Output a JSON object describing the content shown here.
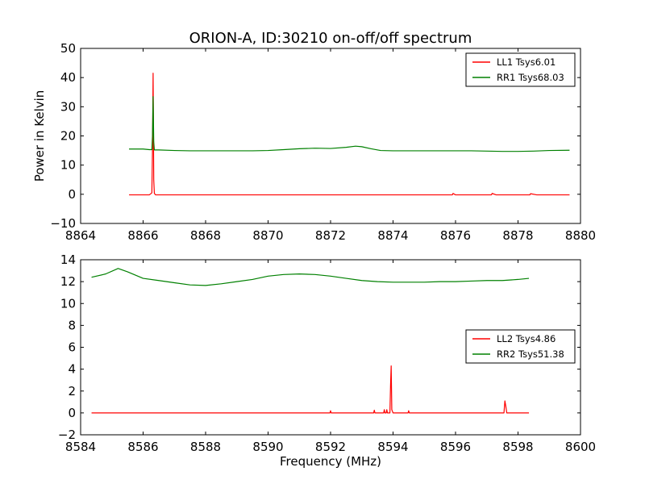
{
  "figure_title": "ORION-A, ID:30210 on-off/off spectrum",
  "colors": {
    "red": "#ff0000",
    "green": "#008000",
    "axes": "#000000"
  },
  "chart_data": [
    {
      "type": "line",
      "title": "ORION-A, ID:30210 on-off/off spectrum",
      "xlabel": "",
      "ylabel": "Power in Kelvin",
      "xlim": [
        8864,
        8880
      ],
      "ylim": [
        -10,
        50
      ],
      "xticks": [
        8864,
        8866,
        8868,
        8870,
        8872,
        8874,
        8876,
        8878,
        8880
      ],
      "yticks": [
        -10,
        0,
        10,
        20,
        30,
        40,
        50
      ],
      "grid": false,
      "legend_position": "top-right",
      "series": [
        {
          "name": "LL1 Tsys6.01",
          "color": "#ff0000",
          "x": [
            8865.55,
            8866.2,
            8866.28,
            8866.3,
            8866.32,
            8866.34,
            8866.36,
            8866.4,
            8866.6,
            8868.0,
            8870.0,
            8872.0,
            8874.0,
            8875.9,
            8875.92,
            8876.0,
            8877.15,
            8877.17,
            8877.3,
            8878.38,
            8878.4,
            8878.6,
            8879.65
          ],
          "y": [
            -0.2,
            -0.2,
            0.5,
            15.0,
            41.5,
            5.0,
            0.3,
            -0.2,
            -0.2,
            -0.2,
            -0.2,
            -0.2,
            -0.2,
            -0.2,
            0.3,
            -0.2,
            -0.2,
            0.3,
            -0.2,
            -0.2,
            0.2,
            -0.2,
            -0.2
          ]
        },
        {
          "name": "RR1 Tsys68.03",
          "color": "#008000",
          "x": [
            8865.55,
            8866.0,
            8866.2,
            8866.28,
            8866.3,
            8866.32,
            8866.34,
            8866.36,
            8866.5,
            8867.0,
            8867.5,
            8868.0,
            8868.5,
            8869.0,
            8869.5,
            8870.0,
            8870.5,
            8871.0,
            8871.5,
            8872.0,
            8872.5,
            8872.8,
            8873.0,
            8873.3,
            8873.6,
            8874.0,
            8874.5,
            8875.0,
            8875.5,
            8876.0,
            8876.5,
            8877.0,
            8877.5,
            8878.0,
            8878.5,
            8879.0,
            8879.65
          ],
          "y": [
            15.5,
            15.5,
            15.3,
            15.3,
            20.0,
            33.5,
            18.0,
            15.2,
            15.2,
            15.0,
            14.9,
            14.9,
            14.9,
            14.9,
            14.9,
            15.0,
            15.3,
            15.6,
            15.8,
            15.7,
            16.1,
            16.5,
            16.3,
            15.6,
            15.0,
            14.9,
            14.9,
            14.9,
            14.9,
            14.9,
            14.9,
            14.8,
            14.7,
            14.7,
            14.8,
            15.0,
            15.1
          ]
        }
      ]
    },
    {
      "type": "line",
      "title": "",
      "xlabel": "Frequency (MHz)",
      "ylabel": "",
      "xlim": [
        8584,
        8600
      ],
      "ylim": [
        -2,
        14
      ],
      "xticks": [
        8584,
        8586,
        8588,
        8590,
        8592,
        8594,
        8596,
        8598,
        8600
      ],
      "yticks": [
        -2,
        0,
        2,
        4,
        6,
        8,
        10,
        12,
        14
      ],
      "grid": false,
      "legend_position": "center-right",
      "series": [
        {
          "name": "LL2 Tsys4.86",
          "color": "#ff0000",
          "x": [
            8584.35,
            8586.0,
            8588.0,
            8590.0,
            8591.98,
            8592.0,
            8592.02,
            8593.0,
            8593.38,
            8593.4,
            8593.42,
            8593.7,
            8593.72,
            8593.74,
            8593.78,
            8593.8,
            8593.82,
            8593.9,
            8593.92,
            8593.94,
            8593.96,
            8594.0,
            8594.48,
            8594.5,
            8594.52,
            8595.5,
            8597.0,
            8597.55,
            8597.58,
            8597.61,
            8597.64,
            8597.7,
            8598.35
          ],
          "y": [
            0.0,
            0.0,
            0.0,
            0.0,
            0.0,
            0.2,
            0.0,
            0.0,
            0.0,
            0.25,
            0.0,
            0.0,
            0.3,
            0.0,
            0.0,
            0.3,
            0.0,
            0.0,
            2.5,
            4.3,
            0.3,
            0.0,
            0.0,
            0.2,
            0.0,
            0.0,
            0.0,
            0.0,
            1.1,
            0.6,
            0.0,
            0.0,
            0.0
          ]
        },
        {
          "name": "RR2 Tsys51.38",
          "color": "#008000",
          "x": [
            8584.35,
            8584.8,
            8585.2,
            8585.5,
            8586.0,
            8586.5,
            8587.0,
            8587.5,
            8588.0,
            8588.5,
            8589.0,
            8589.5,
            8590.0,
            8590.5,
            8591.0,
            8591.5,
            8592.0,
            8592.5,
            8593.0,
            8593.5,
            8594.0,
            8594.5,
            8595.0,
            8595.5,
            8596.0,
            8596.5,
            8597.0,
            8597.5,
            8598.0,
            8598.35
          ],
          "y": [
            12.4,
            12.7,
            13.2,
            12.9,
            12.3,
            12.1,
            11.9,
            11.7,
            11.65,
            11.8,
            12.0,
            12.2,
            12.5,
            12.65,
            12.7,
            12.65,
            12.5,
            12.3,
            12.1,
            12.0,
            11.95,
            11.95,
            11.95,
            12.0,
            12.0,
            12.05,
            12.1,
            12.1,
            12.2,
            12.3
          ]
        }
      ]
    }
  ]
}
